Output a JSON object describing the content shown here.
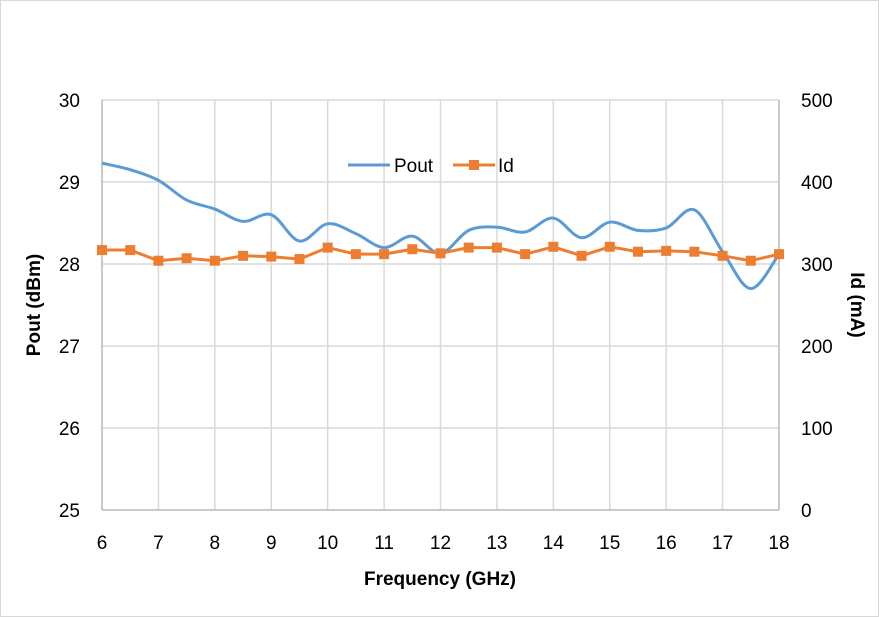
{
  "chart_data": {
    "type": "line",
    "title": "",
    "xlabel": "Frequency (GHz)",
    "ylabel": "Pout (dBm)",
    "y2label": "Id (mA)",
    "xlim": [
      6,
      18
    ],
    "ylim": [
      25,
      30
    ],
    "y2lim": [
      0,
      500
    ],
    "x_ticks": [
      "6",
      "7",
      "8",
      "9",
      "10",
      "11",
      "12",
      "13",
      "14",
      "15",
      "16",
      "17",
      "18"
    ],
    "y_ticks": [
      "25",
      "26",
      "27",
      "28",
      "29",
      "30"
    ],
    "y2_ticks": [
      "0",
      "100",
      "200",
      "300",
      "400",
      "500"
    ],
    "grid": true,
    "legend": "top-center",
    "x": [
      6,
      6.5,
      7,
      7.5,
      8,
      8.5,
      9,
      9.5,
      10,
      10.5,
      11,
      11.5,
      12,
      12.5,
      13,
      13.5,
      14,
      14.5,
      15,
      15.5,
      16,
      16.5,
      17,
      17.5,
      18
    ],
    "series": [
      {
        "name": "Pout",
        "axis": "left",
        "color": "#5b9bd5",
        "smooth": true,
        "marker": "none",
        "values": [
          29.23,
          29.15,
          29.02,
          28.78,
          28.67,
          28.52,
          28.6,
          28.28,
          28.49,
          28.37,
          28.2,
          28.34,
          28.13,
          28.41,
          28.45,
          28.39,
          28.56,
          28.32,
          28.51,
          28.41,
          28.44,
          28.66,
          28.15,
          27.7,
          28.12
        ]
      },
      {
        "name": "Id",
        "axis": "right",
        "color": "#ed7d31",
        "smooth": false,
        "marker": "square",
        "values": [
          317,
          317,
          304,
          307,
          304,
          310,
          309,
          306,
          320,
          312,
          312,
          318,
          313,
          320,
          320,
          312,
          321,
          310,
          321,
          315,
          316,
          315,
          310,
          304,
          312
        ]
      }
    ]
  }
}
